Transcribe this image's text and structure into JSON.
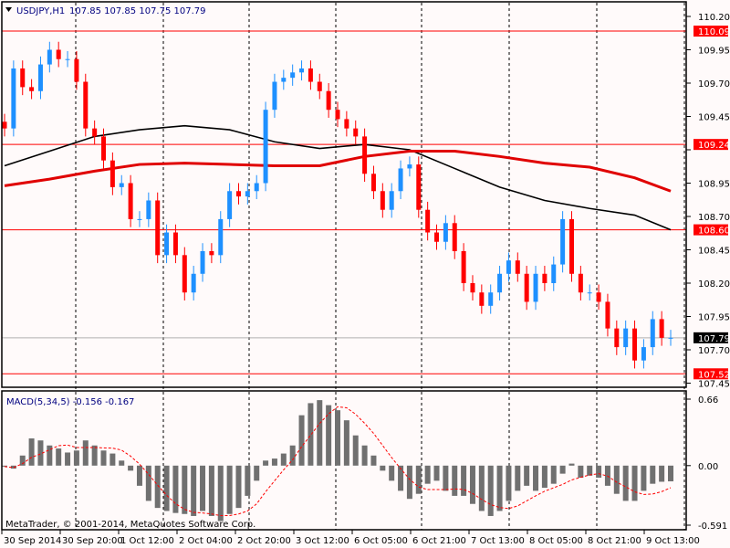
{
  "header": {
    "symbol_label": "USDJPY,H1",
    "ohlc_text": "107.85 107.85 107.75 107.79",
    "menu_icon": "triangle-down-icon"
  },
  "macd_header": {
    "label": "MACD(5,34,5) -0.156 -0.167"
  },
  "copyright": "MetaTrader, © 2001-2014, MetaQuotes Software Corp.",
  "colors": {
    "background": "#fffafa",
    "bull": "#1e90ff",
    "bear": "#ff0000",
    "ma_fast": "#000000",
    "ma_slow": "#e00000",
    "level_line": "#ff0000",
    "histogram": "#707070",
    "signal": "#ff0000"
  },
  "chart_data": [
    {
      "type": "candlestick",
      "title": "USDJPY,H1",
      "ylim": [
        107.45,
        110.2
      ],
      "y_ticks": [
        "110.20",
        "109.95",
        "109.70",
        "109.45",
        "109.20",
        "108.95",
        "108.70",
        "108.45",
        "108.20",
        "107.95",
        "107.70",
        "107.45"
      ],
      "x_ticks": [
        "30 Sep 2014",
        "30 Sep 20:00",
        "1 Oct 12:00",
        "2 Oct 04:00",
        "2 Oct 20:00",
        "3 Oct 12:00",
        "6 Oct 05:00",
        "6 Oct 21:00",
        "7 Oct 13:00",
        "8 Oct 05:00",
        "8 Oct 21:00",
        "9 Oct 13:00"
      ],
      "grid": "vertical-dashed",
      "close": [
        109.36,
        109.81,
        109.67,
        109.64,
        109.84,
        109.95,
        109.88,
        109.88,
        109.71,
        109.36,
        109.3,
        109.12,
        108.92,
        108.95,
        108.68,
        108.68,
        108.82,
        108.41,
        108.58,
        108.41,
        108.13,
        108.27,
        108.44,
        108.41,
        108.68,
        108.89,
        108.85,
        108.89,
        108.95,
        109.5,
        109.71,
        109.74,
        109.78,
        109.81,
        109.71,
        109.64,
        109.5,
        109.43,
        109.36,
        109.3,
        109.02,
        108.89,
        108.75,
        108.89,
        109.06,
        109.09,
        108.75,
        108.58,
        108.51,
        108.65,
        108.44,
        108.2,
        108.13,
        108.03,
        108.13,
        108.27,
        108.37,
        108.27,
        108.06,
        108.27,
        108.2,
        108.34,
        108.68,
        108.27,
        108.13,
        108.13,
        108.06,
        107.86,
        107.72,
        107.86,
        107.62,
        107.72,
        107.93,
        107.79,
        107.79
      ],
      "moving_averages": [
        {
          "values_every_5": [
            109.08,
            109.19,
            109.3,
            109.35,
            109.38,
            109.35,
            109.26,
            109.21,
            109.24,
            109.2,
            109.06,
            108.92,
            108.82,
            108.76,
            108.71,
            108.6
          ]
        },
        {
          "values_every_5": [
            108.93,
            108.98,
            109.04,
            109.09,
            109.1,
            109.09,
            109.08,
            109.08,
            109.15,
            109.19,
            109.19,
            109.15,
            109.1,
            109.07,
            108.99,
            108.89
          ]
        }
      ],
      "horizontal_levels": [
        {
          "price": "110.09",
          "color": "#ff0000"
        },
        {
          "price": "109.24",
          "color": "#ff0000"
        },
        {
          "price": "108.60",
          "color": "#ff0000"
        },
        {
          "price": "107.52",
          "color": "#ff0000"
        }
      ],
      "current_price": "107.79"
    },
    {
      "type": "bar",
      "title": "MACD(5,34,5) -0.156 -0.167",
      "ylim": [
        -0.591,
        0.66
      ],
      "y_ticks": [
        "0.66",
        "0.00",
        "-0.591"
      ],
      "signal_period": 5,
      "macd": [
        -0.01,
        -0.03,
        0.1,
        0.27,
        0.25,
        0.2,
        0.17,
        0.13,
        0.15,
        0.25,
        0.2,
        0.15,
        0.12,
        0.05,
        -0.05,
        -0.2,
        -0.35,
        -0.42,
        -0.45,
        -0.47,
        -0.48,
        -0.5,
        -0.45,
        -0.5,
        -0.55,
        -0.48,
        -0.42,
        -0.3,
        -0.15,
        0.05,
        0.07,
        0.12,
        0.2,
        0.5,
        0.62,
        0.65,
        0.6,
        0.55,
        0.45,
        0.3,
        0.2,
        0.1,
        -0.05,
        -0.15,
        -0.25,
        -0.33,
        -0.28,
        -0.18,
        -0.15,
        -0.25,
        -0.3,
        -0.3,
        -0.38,
        -0.45,
        -0.5,
        -0.45,
        -0.35,
        -0.25,
        -0.2,
        -0.25,
        -0.22,
        -0.18,
        -0.08,
        0.02,
        -0.12,
        -0.1,
        -0.12,
        -0.2,
        -0.28,
        -0.35,
        -0.35,
        -0.25,
        -0.18,
        -0.16,
        -0.156
      ]
    }
  ]
}
